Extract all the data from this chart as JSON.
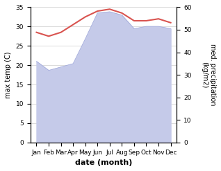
{
  "months": [
    "Jan",
    "Feb",
    "Mar",
    "Apr",
    "May",
    "Jun",
    "Jul",
    "Aug",
    "Sep",
    "Oct",
    "Nov",
    "Dec"
  ],
  "month_positions": [
    0,
    1,
    2,
    3,
    4,
    5,
    6,
    7,
    8,
    9,
    10,
    11
  ],
  "temperature": [
    28.5,
    27.5,
    28.5,
    30.5,
    32.5,
    34.0,
    34.5,
    33.5,
    31.5,
    31.5,
    32.0,
    31.0
  ],
  "rainfall": [
    36.0,
    32.0,
    33.5,
    35.0,
    46.0,
    57.5,
    58.0,
    56.5,
    50.5,
    51.5,
    51.5,
    50.5
  ],
  "temp_color": "#d9534f",
  "rain_color": "#c5cae9",
  "rain_edge_color": "#9fa8da",
  "xlabel": "date (month)",
  "ylabel_left": "max temp (C)",
  "ylabel_right": "med. precipitation\n(kg/m2)",
  "ylim_left": [
    0,
    35
  ],
  "ylim_right": [
    0,
    60
  ],
  "yticks_left": [
    0,
    5,
    10,
    15,
    20,
    25,
    30,
    35
  ],
  "yticks_right": [
    0,
    10,
    20,
    30,
    40,
    50,
    60
  ],
  "bg_color": "#ffffff",
  "grid_color": "#cccccc"
}
